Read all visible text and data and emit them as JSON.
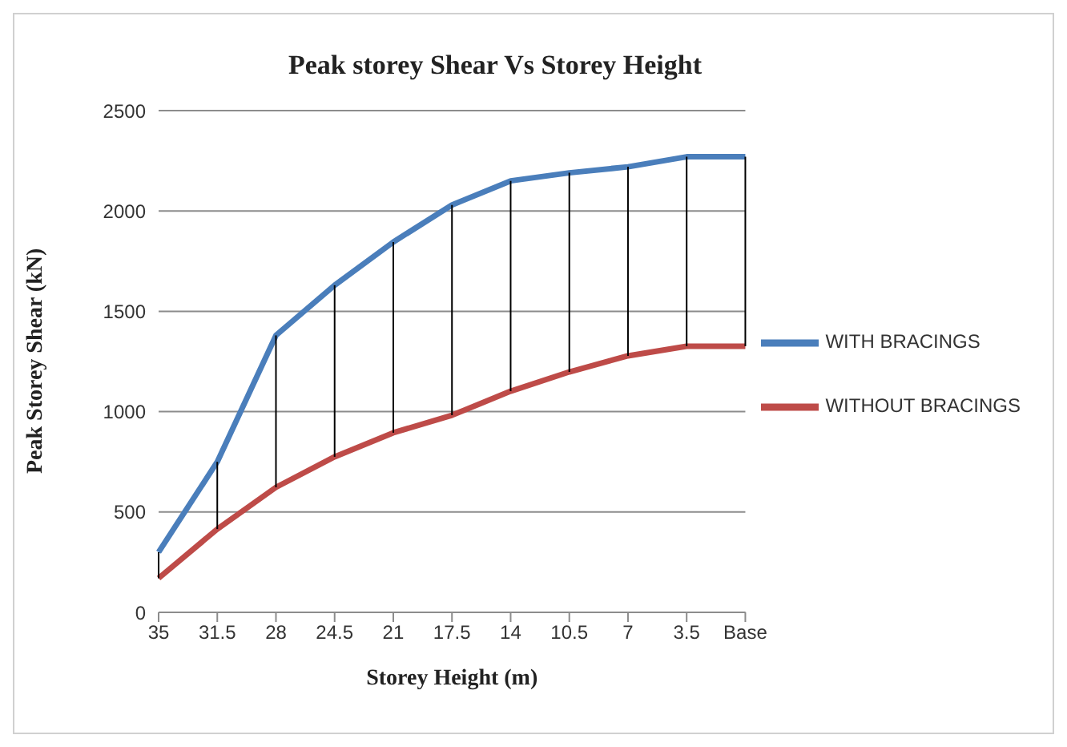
{
  "chart_data": {
    "type": "line",
    "title": "Peak storey Shear Vs Storey Height",
    "xlabel": "Storey Height (m)",
    "ylabel": "Peak Storey  Shear (kN)",
    "categories": [
      "35",
      "31.5",
      "28",
      "24.5",
      "21",
      "17.5",
      "14",
      "10.5",
      "7",
      "3.5",
      "Base"
    ],
    "series": [
      {
        "name": "WITH BRACINGS",
        "color": "#4a7ebb",
        "values": [
          300,
          750,
          1380,
          1630,
          1845,
          2030,
          2150,
          2190,
          2220,
          2270,
          2270
        ]
      },
      {
        "name": "WITHOUT BRACINGS",
        "color": "#be4b48",
        "values": [
          170,
          415,
          623,
          775,
          895,
          982,
          1102,
          1198,
          1278,
          1326,
          1326
        ]
      }
    ],
    "ylim": [
      0,
      2500
    ],
    "yticks": [
      0,
      500,
      1000,
      1500,
      2000,
      2500
    ],
    "grid": "y",
    "legend": "right",
    "marker": "none",
    "line_style": "solid"
  }
}
